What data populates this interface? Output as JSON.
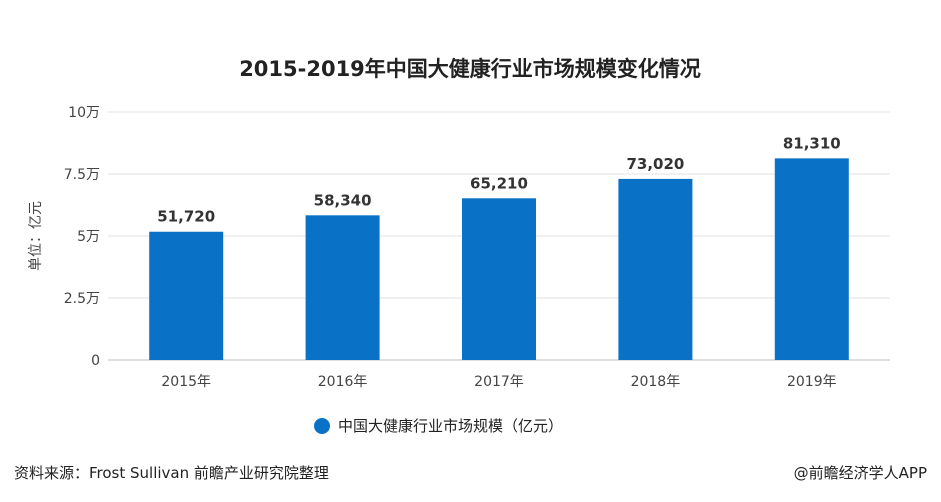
{
  "chart_data": {
    "type": "bar",
    "title": "2015-2019年中国大健康行业市场规模变化情况",
    "ylabel": "单位：亿元",
    "categories": [
      "2015年",
      "2016年",
      "2017年",
      "2018年",
      "2019年"
    ],
    "series": [
      {
        "name": "中国大健康行业市场规模（亿元）",
        "values": [
          51720,
          58340,
          65210,
          73020,
          81310
        ]
      }
    ],
    "data_labels": [
      "51,720",
      "58,340",
      "65,210",
      "73,020",
      "81,310"
    ],
    "y_ticks": [
      {
        "value": 0,
        "label": "0"
      },
      {
        "value": 25000,
        "label": "2.5万"
      },
      {
        "value": 50000,
        "label": "5万"
      },
      {
        "value": 75000,
        "label": "7.5万"
      },
      {
        "value": 100000,
        "label": "10万"
      }
    ],
    "ylim": [
      0,
      100000
    ],
    "grid": true,
    "legend_position": "bottom-center",
    "bar_color": "#0a72c6"
  },
  "footer": {
    "source": "资料来源：Frost Sullivan 前瞻产业研究院整理",
    "brand": "@前瞻经济学人APP"
  }
}
